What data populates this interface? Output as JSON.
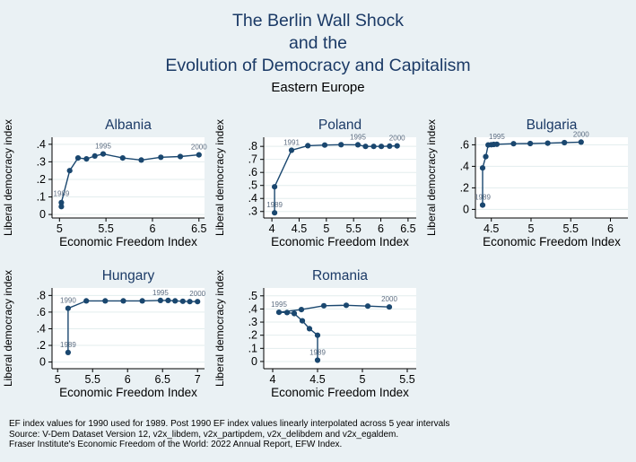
{
  "colors": {
    "background": "#eaf1f4",
    "plot_bg": "#ffffff",
    "grid": "#e3edee",
    "axis": "#000000",
    "series": "#1a476f",
    "title": "#1b3a66",
    "tick_text": "#000000",
    "year_label": "#5e6e82"
  },
  "header": {
    "title_lines": [
      "The Berlin Wall Shock",
      "and the",
      "Evolution of Democracy and Capitalism"
    ],
    "subtitle": "Eastern Europe"
  },
  "footnotes": [
    "EF index values for 1990 used for 1989. Post 1990 EF index values linearly interpolated across 5 year intervals",
    "Source: V-Dem Dataset Version 12, v2x_libdem, v2x_partipdem, v2x_delibdem and v2x_egaldem.",
    "Fraser Institute's Economic Freedom of the World: 2022 Annual Report, EFW Index."
  ],
  "chart_data": [
    {
      "type": "line",
      "title": "Albania",
      "xlabel": "Economic Freedom Index",
      "ylabel": "Liberal democracy index",
      "xlim": [
        4.92,
        6.56
      ],
      "ylim": [
        -0.02,
        0.44
      ],
      "xticks": [
        5,
        5.5,
        6,
        6.5
      ],
      "xtick_labels": [
        "5",
        "5.5",
        "6",
        "6.5"
      ],
      "yticks": [
        0,
        0.1,
        0.2,
        0.3,
        0.4
      ],
      "ytick_labels": [
        "0",
        ".1",
        ".2",
        ".3",
        ".4"
      ],
      "grid": "horizontal",
      "legend": "none",
      "series": [
        {
          "name": "Albania",
          "points": [
            {
              "year": 1989,
              "x": 5.02,
              "y": 0.045,
              "label": "1989",
              "label_dy": -12
            },
            {
              "year": 1990,
              "x": 5.02,
              "y": 0.068
            },
            {
              "year": 1991,
              "x": 5.11,
              "y": 0.25
            },
            {
              "year": 1992,
              "x": 5.2,
              "y": 0.322
            },
            {
              "year": 1993,
              "x": 5.29,
              "y": 0.317
            },
            {
              "year": 1994,
              "x": 5.38,
              "y": 0.333
            },
            {
              "year": 1995,
              "x": 5.47,
              "y": 0.345,
              "label": "1995"
            },
            {
              "year": 1996,
              "x": 5.68,
              "y": 0.322
            },
            {
              "year": 1997,
              "x": 5.88,
              "y": 0.31
            },
            {
              "year": 1998,
              "x": 6.09,
              "y": 0.326
            },
            {
              "year": 1999,
              "x": 6.3,
              "y": 0.33
            },
            {
              "year": 2000,
              "x": 6.5,
              "y": 0.34,
              "label": "2000"
            }
          ]
        }
      ]
    },
    {
      "type": "line",
      "title": "Poland",
      "xlabel": "Economic Freedom Index",
      "ylabel": "Liberal democracy index",
      "xlim": [
        3.85,
        6.65
      ],
      "ylim": [
        0.25,
        0.87
      ],
      "xticks": [
        4,
        4.5,
        5,
        5.5,
        6,
        6.5
      ],
      "xtick_labels": [
        "4",
        "4.5",
        "5",
        "5.5",
        "6",
        "6.5"
      ],
      "yticks": [
        0.3,
        0.4,
        0.5,
        0.6,
        0.7,
        0.8
      ],
      "ytick_labels": [
        ".3",
        ".4",
        ".5",
        ".6",
        ".7",
        ".8"
      ],
      "grid": "horizontal",
      "legend": "none",
      "series": [
        {
          "name": "Poland",
          "points": [
            {
              "year": 1989,
              "x": 4.05,
              "y": 0.29,
              "label": "1989"
            },
            {
              "year": 1990,
              "x": 4.05,
              "y": 0.49
            },
            {
              "year": 1991,
              "x": 4.36,
              "y": 0.77,
              "label": "1991"
            },
            {
              "year": 1992,
              "x": 4.66,
              "y": 0.805
            },
            {
              "year": 1993,
              "x": 4.97,
              "y": 0.81
            },
            {
              "year": 1994,
              "x": 5.27,
              "y": 0.813
            },
            {
              "year": 1995,
              "x": 5.58,
              "y": 0.812,
              "label": "1995"
            },
            {
              "year": 1996,
              "x": 5.72,
              "y": 0.8
            },
            {
              "year": 1997,
              "x": 5.87,
              "y": 0.8
            },
            {
              "year": 1998,
              "x": 6.01,
              "y": 0.8
            },
            {
              "year": 1999,
              "x": 6.16,
              "y": 0.802
            },
            {
              "year": 2000,
              "x": 6.3,
              "y": 0.804,
              "label": "2000"
            }
          ]
        }
      ]
    },
    {
      "type": "line",
      "title": "Bulgaria",
      "xlabel": "Economic Freedom Index",
      "ylabel": "Liberal democracy index",
      "xlim": [
        4.3,
        6.22
      ],
      "ylim": [
        -0.08,
        0.67
      ],
      "xticks": [
        4.5,
        5,
        5.5,
        6
      ],
      "xtick_labels": [
        "4.5",
        "5",
        "5.5",
        "6"
      ],
      "yticks": [
        0,
        0.2,
        0.4,
        0.6
      ],
      "ytick_labels": [
        "0",
        ".2",
        ".4",
        ".6"
      ],
      "grid": "horizontal",
      "legend": "none",
      "series": [
        {
          "name": "Bulgaria",
          "points": [
            {
              "year": 1989,
              "x": 4.39,
              "y": 0.04,
              "label": "1989"
            },
            {
              "year": 1990,
              "x": 4.39,
              "y": 0.385
            },
            {
              "year": 1991,
              "x": 4.43,
              "y": 0.49
            },
            {
              "year": 1992,
              "x": 4.46,
              "y": 0.598
            },
            {
              "year": 1993,
              "x": 4.5,
              "y": 0.601
            },
            {
              "year": 1994,
              "x": 4.53,
              "y": 0.603
            },
            {
              "year": 1995,
              "x": 4.57,
              "y": 0.605,
              "label": "1995"
            },
            {
              "year": 1996,
              "x": 4.78,
              "y": 0.61
            },
            {
              "year": 1997,
              "x": 4.99,
              "y": 0.612
            },
            {
              "year": 1998,
              "x": 5.21,
              "y": 0.615
            },
            {
              "year": 1999,
              "x": 5.42,
              "y": 0.62
            },
            {
              "year": 2000,
              "x": 5.63,
              "y": 0.625,
              "label": "2000"
            }
          ]
        }
      ]
    },
    {
      "type": "line",
      "title": "Hungary",
      "xlabel": "Economic Freedom Index",
      "ylabel": "Liberal democracy index",
      "xlim": [
        4.92,
        7.1
      ],
      "ylim": [
        -0.08,
        0.89
      ],
      "xticks": [
        5,
        5.5,
        6,
        6.5,
        7
      ],
      "xtick_labels": [
        "5",
        "5.5",
        "6",
        "6.5",
        "7"
      ],
      "yticks": [
        0,
        0.2,
        0.4,
        0.6,
        0.8
      ],
      "ytick_labels": [
        "0",
        ".2",
        ".4",
        ".6",
        ".8"
      ],
      "grid": "horizontal",
      "legend": "none",
      "series": [
        {
          "name": "Hungary",
          "points": [
            {
              "year": 1989,
              "x": 5.15,
              "y": 0.115,
              "label": "1989"
            },
            {
              "year": 1990,
              "x": 5.15,
              "y": 0.645,
              "label": "1990"
            },
            {
              "year": 1991,
              "x": 5.41,
              "y": 0.735
            },
            {
              "year": 1992,
              "x": 5.68,
              "y": 0.735
            },
            {
              "year": 1993,
              "x": 5.94,
              "y": 0.735
            },
            {
              "year": 1994,
              "x": 6.21,
              "y": 0.735
            },
            {
              "year": 1995,
              "x": 6.47,
              "y": 0.74,
              "label": "1995"
            },
            {
              "year": 1996,
              "x": 6.58,
              "y": 0.74
            },
            {
              "year": 1997,
              "x": 6.68,
              "y": 0.735
            },
            {
              "year": 1998,
              "x": 6.79,
              "y": 0.73
            },
            {
              "year": 1999,
              "x": 6.89,
              "y": 0.726
            },
            {
              "year": 2000,
              "x": 7.0,
              "y": 0.726,
              "label": "2000"
            }
          ]
        }
      ]
    },
    {
      "type": "line",
      "title": "Romania",
      "xlabel": "Economic Freedom Index",
      "ylabel": "Liberal democracy index",
      "xlim": [
        3.9,
        5.6
      ],
      "ylim": [
        -0.055,
        0.56
      ],
      "xticks": [
        4,
        4.5,
        5,
        5.5
      ],
      "xtick_labels": [
        "4",
        "4.5",
        "5",
        "5.5"
      ],
      "yticks": [
        0,
        0.1,
        0.2,
        0.3,
        0.4,
        0.5
      ],
      "ytick_labels": [
        "0",
        ".1",
        ".2",
        ".3",
        ".4",
        ".5"
      ],
      "grid": "horizontal",
      "legend": "none",
      "series": [
        {
          "name": "Romania",
          "points": [
            {
              "year": 1989,
              "x": 4.5,
              "y": 0.01,
              "label": "1989"
            },
            {
              "year": 1990,
              "x": 4.5,
              "y": 0.2
            },
            {
              "year": 1991,
              "x": 4.41,
              "y": 0.25
            },
            {
              "year": 1992,
              "x": 4.33,
              "y": 0.31
            },
            {
              "year": 1993,
              "x": 4.24,
              "y": 0.365
            },
            {
              "year": 1994,
              "x": 4.16,
              "y": 0.373
            },
            {
              "year": 1995,
              "x": 4.07,
              "y": 0.375,
              "label": "1995"
            },
            {
              "year": 1996,
              "x": 4.32,
              "y": 0.395
            },
            {
              "year": 1997,
              "x": 4.57,
              "y": 0.425
            },
            {
              "year": 1998,
              "x": 4.82,
              "y": 0.428
            },
            {
              "year": 1999,
              "x": 5.06,
              "y": 0.422
            },
            {
              "year": 2000,
              "x": 5.3,
              "y": 0.415,
              "label": "2000"
            }
          ]
        }
      ]
    }
  ]
}
